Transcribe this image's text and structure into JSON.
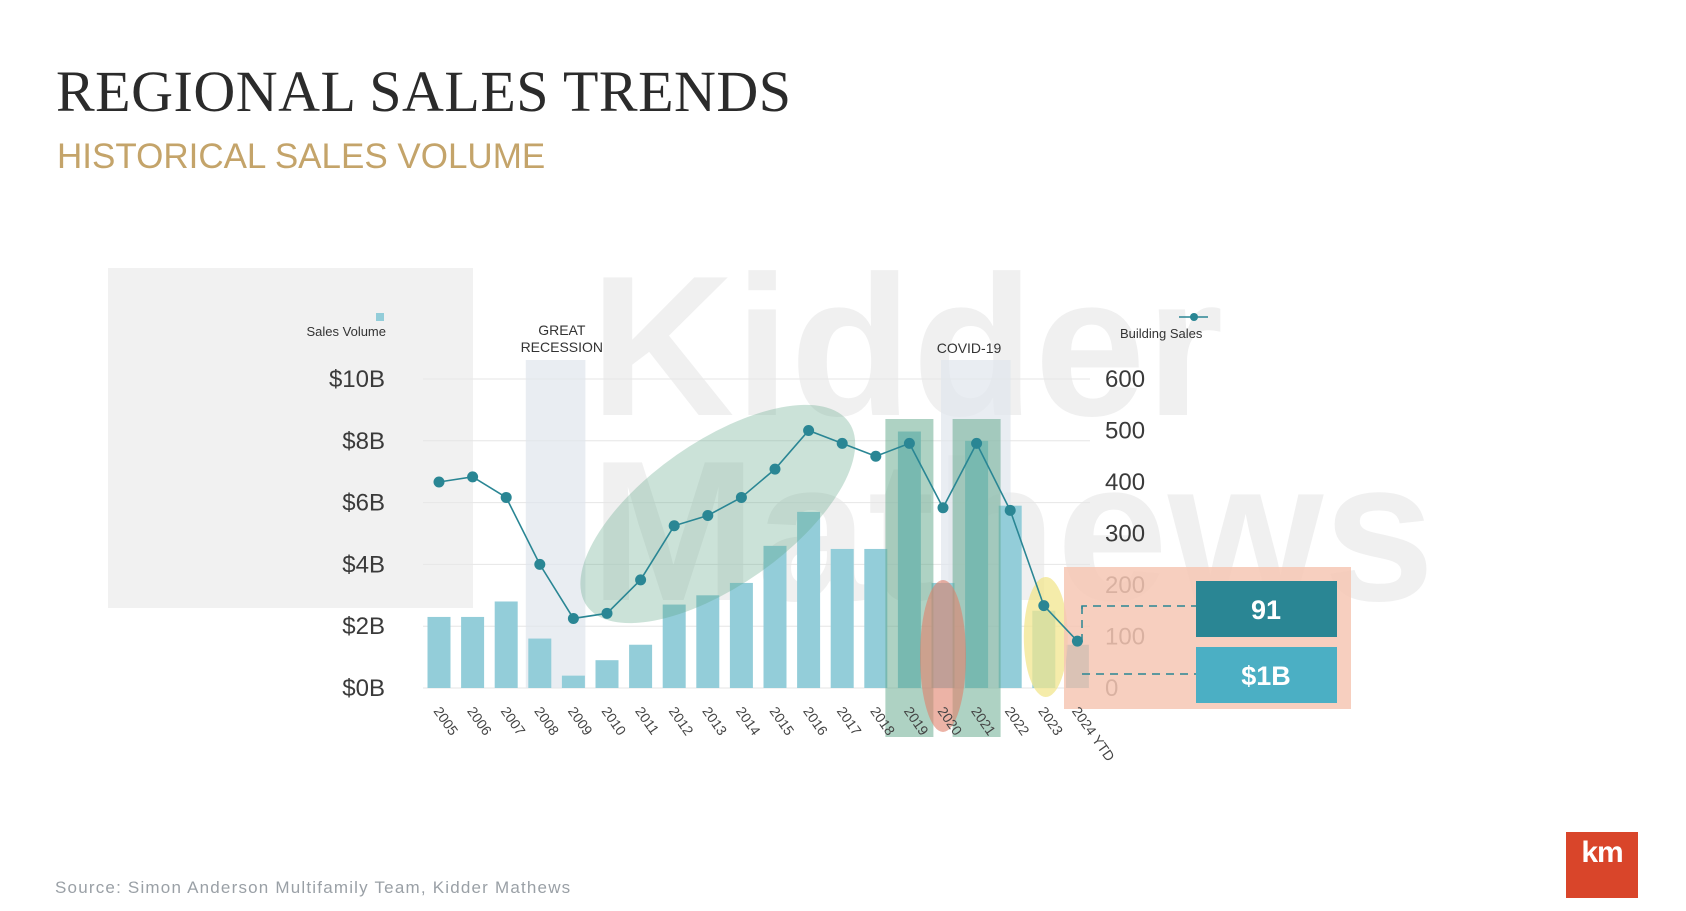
{
  "title": "REGIONAL SALES TRENDS",
  "subtitle": "HISTORICAL SALES VOLUME",
  "source": "Source: Simon Anderson Multifamily Team, Kidder Mathews",
  "logo_text": "km",
  "watermark_text": "km Kidder Mathews",
  "colors": {
    "bar": "#93cdd9",
    "bar_ytd": "#3fa6bd",
    "line": "#2a8694",
    "highlight_green": "#5ea587",
    "highlight_red": "#e0806a",
    "highlight_yellow": "#f1e58e",
    "callout_bg": "#f6c7b4",
    "callout_count": "#2a8694",
    "callout_volume": "#4bafc4",
    "title_gold": "#c4a46a",
    "logo": "#d9452a"
  },
  "chart_data": {
    "type": "bar",
    "categories": [
      "2005",
      "2006",
      "2007",
      "2008",
      "2009",
      "2010",
      "2011",
      "2012",
      "2013",
      "2014",
      "2015",
      "2016",
      "2017",
      "2018",
      "2019",
      "2020",
      "2021",
      "2022",
      "2023",
      "2024 YTD"
    ],
    "series": [
      {
        "name": "Sales Volume",
        "type": "bar",
        "axis": "left",
        "values": [
          2.3,
          2.3,
          2.8,
          1.6,
          0.4,
          0.9,
          1.4,
          2.7,
          3.0,
          3.4,
          4.6,
          5.7,
          4.5,
          4.5,
          8.3,
          3.4,
          8.0,
          5.9,
          2.5,
          1.4
        ]
      },
      {
        "name": "Building Sales",
        "type": "line",
        "axis": "right",
        "values": [
          400,
          410,
          370,
          240,
          135,
          145,
          210,
          315,
          335,
          370,
          425,
          500,
          475,
          450,
          475,
          350,
          475,
          345,
          160,
          91
        ]
      }
    ],
    "left_axis": {
      "label": "Sales Volume",
      "ticks": [
        "$0B",
        "$2B",
        "$4B",
        "$6B",
        "$8B",
        "$10B"
      ],
      "ylim": [
        0,
        10
      ]
    },
    "right_axis": {
      "label": "Building Sales",
      "ticks": [
        "0",
        "100",
        "200",
        "300",
        "400",
        "500",
        "600"
      ],
      "ylim": [
        0,
        600
      ]
    },
    "annotations": [
      {
        "text": "GREAT\nRECESSION",
        "lines": [
          "GREAT",
          "RECESSION"
        ],
        "span": [
          "2008",
          "2009"
        ]
      },
      {
        "text": "COVID-19",
        "lines": [
          "COVID-19"
        ],
        "span": [
          "2020",
          "2021"
        ]
      }
    ],
    "callouts": {
      "count": "91",
      "volume": "$1B"
    },
    "grid": true,
    "legend": "top-left and top-right axis labels"
  }
}
